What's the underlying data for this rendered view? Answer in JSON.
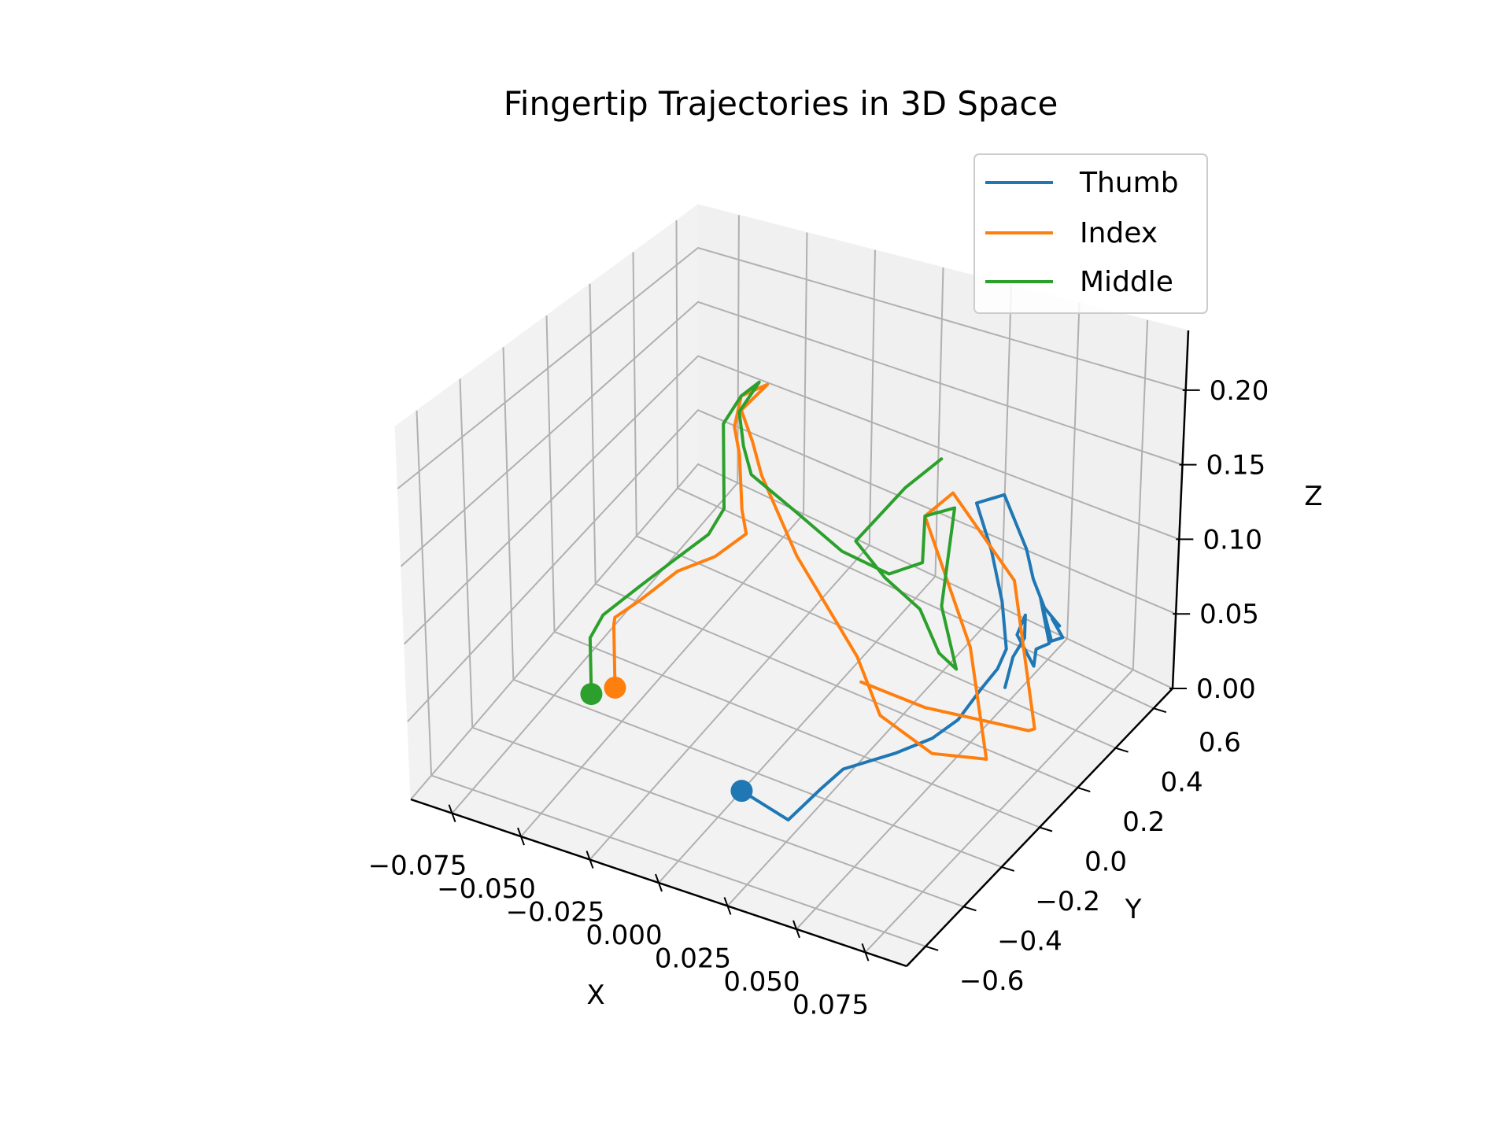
{
  "chart_data": {
    "type": "line",
    "projection": "3d",
    "title": "Fingertip Trajectories in 3D Space",
    "xlabel": "X",
    "ylabel": "Y",
    "zlabel": "Z",
    "xlim": [
      -0.09,
      0.09
    ],
    "ylim": [
      -0.7,
      0.7
    ],
    "zlim": [
      0.0,
      0.24
    ],
    "xticks": [
      -0.075,
      -0.05,
      -0.025,
      0.0,
      0.025,
      0.05,
      0.075
    ],
    "xtick_labels": [
      "−0.075",
      "−0.050",
      "−0.025",
      "0.000",
      "0.025",
      "0.050",
      "0.075"
    ],
    "yticks": [
      -0.6,
      -0.4,
      -0.2,
      0.0,
      0.2,
      0.4,
      0.6
    ],
    "ytick_labels": [
      "−0.6",
      "−0.4",
      "−0.2",
      "0.0",
      "0.2",
      "0.4",
      "0.6"
    ],
    "zticks": [
      0.0,
      0.05,
      0.1,
      0.15,
      0.2
    ],
    "ztick_labels": [
      "0.00",
      "0.05",
      "0.10",
      "0.15",
      "0.20"
    ],
    "grid": true,
    "legend_position": "top-right",
    "series": [
      {
        "name": "Thumb",
        "color": "#1f77b4",
        "start_marker": "circle",
        "points": [
          [
            0.0,
            -0.28,
            0.0
          ],
          [
            0.02,
            -0.32,
            0.0
          ],
          [
            0.025,
            -0.22,
            0.01
          ],
          [
            0.028,
            -0.15,
            0.015
          ],
          [
            0.04,
            -0.05,
            0.02
          ],
          [
            0.05,
            0.0,
            0.03
          ],
          [
            0.058,
            0.02,
            0.045
          ],
          [
            0.062,
            0.08,
            0.06
          ],
          [
            0.063,
            0.15,
            0.065
          ],
          [
            0.064,
            0.18,
            0.075
          ],
          [
            0.06,
            0.21,
            0.1
          ],
          [
            0.055,
            0.22,
            0.13
          ],
          [
            0.05,
            0.21,
            0.16
          ],
          [
            0.055,
            0.28,
            0.16
          ],
          [
            0.06,
            0.33,
            0.12
          ],
          [
            0.062,
            0.34,
            0.1
          ],
          [
            0.065,
            0.36,
            0.08
          ],
          [
            0.07,
            0.37,
            0.07
          ],
          [
            0.07,
            0.33,
            0.08
          ],
          [
            0.072,
            0.36,
            0.065
          ],
          [
            0.07,
            0.33,
            0.065
          ],
          [
            0.069,
            0.28,
            0.1
          ],
          [
            0.072,
            0.29,
            0.07
          ],
          [
            0.07,
            0.25,
            0.07
          ],
          [
            0.07,
            0.24,
            0.06
          ],
          [
            0.065,
            0.22,
            0.08
          ],
          [
            0.07,
            0.19,
            0.1
          ],
          [
            0.072,
            0.16,
            0.09
          ],
          [
            0.07,
            0.13,
            0.08
          ],
          [
            0.068,
            0.12,
            0.06
          ]
        ]
      },
      {
        "name": "Index",
        "color": "#ff7f0e",
        "start_marker": "circle",
        "points": [
          [
            -0.06,
            -0.1,
            0.0
          ],
          [
            -0.06,
            -0.1,
            0.045
          ],
          [
            -0.058,
            -0.12,
            0.055
          ],
          [
            -0.05,
            -0.1,
            0.07
          ],
          [
            -0.04,
            -0.05,
            0.09
          ],
          [
            -0.03,
            0.0,
            0.1
          ],
          [
            -0.02,
            0.02,
            0.12
          ],
          [
            -0.02,
            0.0,
            0.14
          ],
          [
            -0.02,
            -0.01,
            0.18
          ],
          [
            -0.021,
            -0.02,
            0.2
          ],
          [
            -0.02,
            0.0,
            0.22
          ],
          [
            -0.012,
            0.02,
            0.23
          ],
          [
            -0.02,
            0.0,
            0.21
          ],
          [
            -0.016,
            0.0,
            0.19
          ],
          [
            -0.012,
            -0.01,
            0.17
          ],
          [
            0.0,
            0.0,
            0.12
          ],
          [
            0.02,
            0.03,
            0.06
          ],
          [
            0.03,
            0.01,
            0.03
          ],
          [
            0.05,
            0.0,
            0.02
          ],
          [
            0.07,
            0.0,
            0.03
          ],
          [
            0.06,
            0.05,
            0.09
          ],
          [
            0.04,
            0.09,
            0.16
          ],
          [
            0.045,
            0.16,
            0.17
          ],
          [
            0.07,
            0.13,
            0.13
          ],
          [
            0.075,
            0.18,
            0.03
          ],
          [
            0.07,
            0.22,
            0.02
          ],
          [
            0.04,
            0.1,
            0.03
          ],
          [
            0.02,
            0.05,
            0.04
          ]
        ]
      },
      {
        "name": "Middle",
        "color": "#2ca02c",
        "start_marker": "circle",
        "points": [
          [
            -0.065,
            -0.15,
            0.0
          ],
          [
            -0.065,
            -0.15,
            0.04
          ],
          [
            -0.06,
            -0.15,
            0.06
          ],
          [
            -0.05,
            -0.1,
            0.08
          ],
          [
            -0.04,
            -0.06,
            0.1
          ],
          [
            -0.03,
            -0.03,
            0.12
          ],
          [
            -0.025,
            -0.02,
            0.14
          ],
          [
            -0.025,
            -0.02,
            0.17
          ],
          [
            -0.025,
            -0.02,
            0.2
          ],
          [
            -0.02,
            0.0,
            0.22
          ],
          [
            -0.015,
            0.02,
            0.23
          ],
          [
            -0.02,
            -0.01,
            0.21
          ],
          [
            -0.017,
            -0.03,
            0.19
          ],
          [
            -0.015,
            -0.02,
            0.17
          ],
          [
            0.0,
            0.0,
            0.15
          ],
          [
            0.015,
            0.02,
            0.13
          ],
          [
            0.03,
            0.05,
            0.12
          ],
          [
            0.04,
            0.08,
            0.13
          ],
          [
            0.04,
            0.09,
            0.16
          ],
          [
            0.05,
            0.1,
            0.17
          ],
          [
            0.045,
            0.11,
            0.1
          ],
          [
            0.05,
            0.12,
            0.06
          ],
          [
            0.045,
            0.1,
            0.07
          ],
          [
            0.04,
            0.07,
            0.1
          ],
          [
            0.03,
            0.03,
            0.12
          ],
          [
            0.02,
            0.02,
            0.14
          ],
          [
            0.035,
            0.06,
            0.18
          ],
          [
            0.045,
            0.1,
            0.2
          ]
        ]
      }
    ]
  }
}
